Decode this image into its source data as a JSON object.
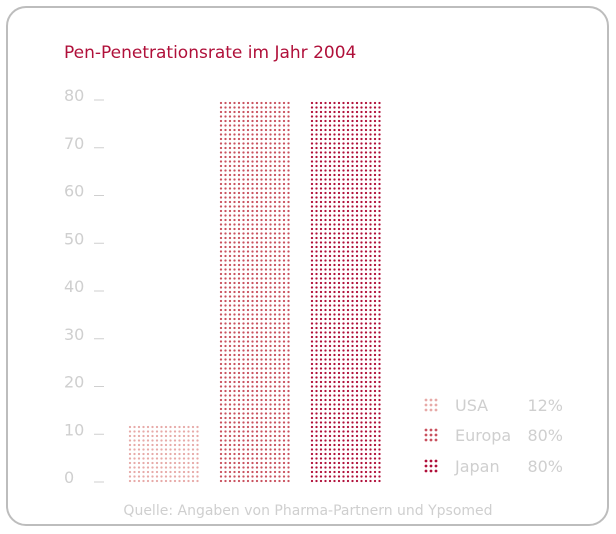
{
  "chart_data": {
    "type": "bar",
    "title": "Pen-Penetrationsrate im Jahr 2004",
    "categories": [
      "USA",
      "Europa",
      "Japan"
    ],
    "values": [
      12,
      80,
      80
    ],
    "value_labels": [
      "12%",
      "80%",
      "80%"
    ],
    "ylim": [
      0,
      80
    ],
    "yticks": [
      "0",
      "10",
      "20",
      "30",
      "40",
      "50",
      "60",
      "70",
      "80"
    ],
    "colors": [
      "#e7aaa8",
      "#c9525f",
      "#b0103a"
    ],
    "legend_placement": "bottom-right",
    "grid": false,
    "source": "Quelle: Angaben von Pharma-Partnern und Ypsomed"
  }
}
